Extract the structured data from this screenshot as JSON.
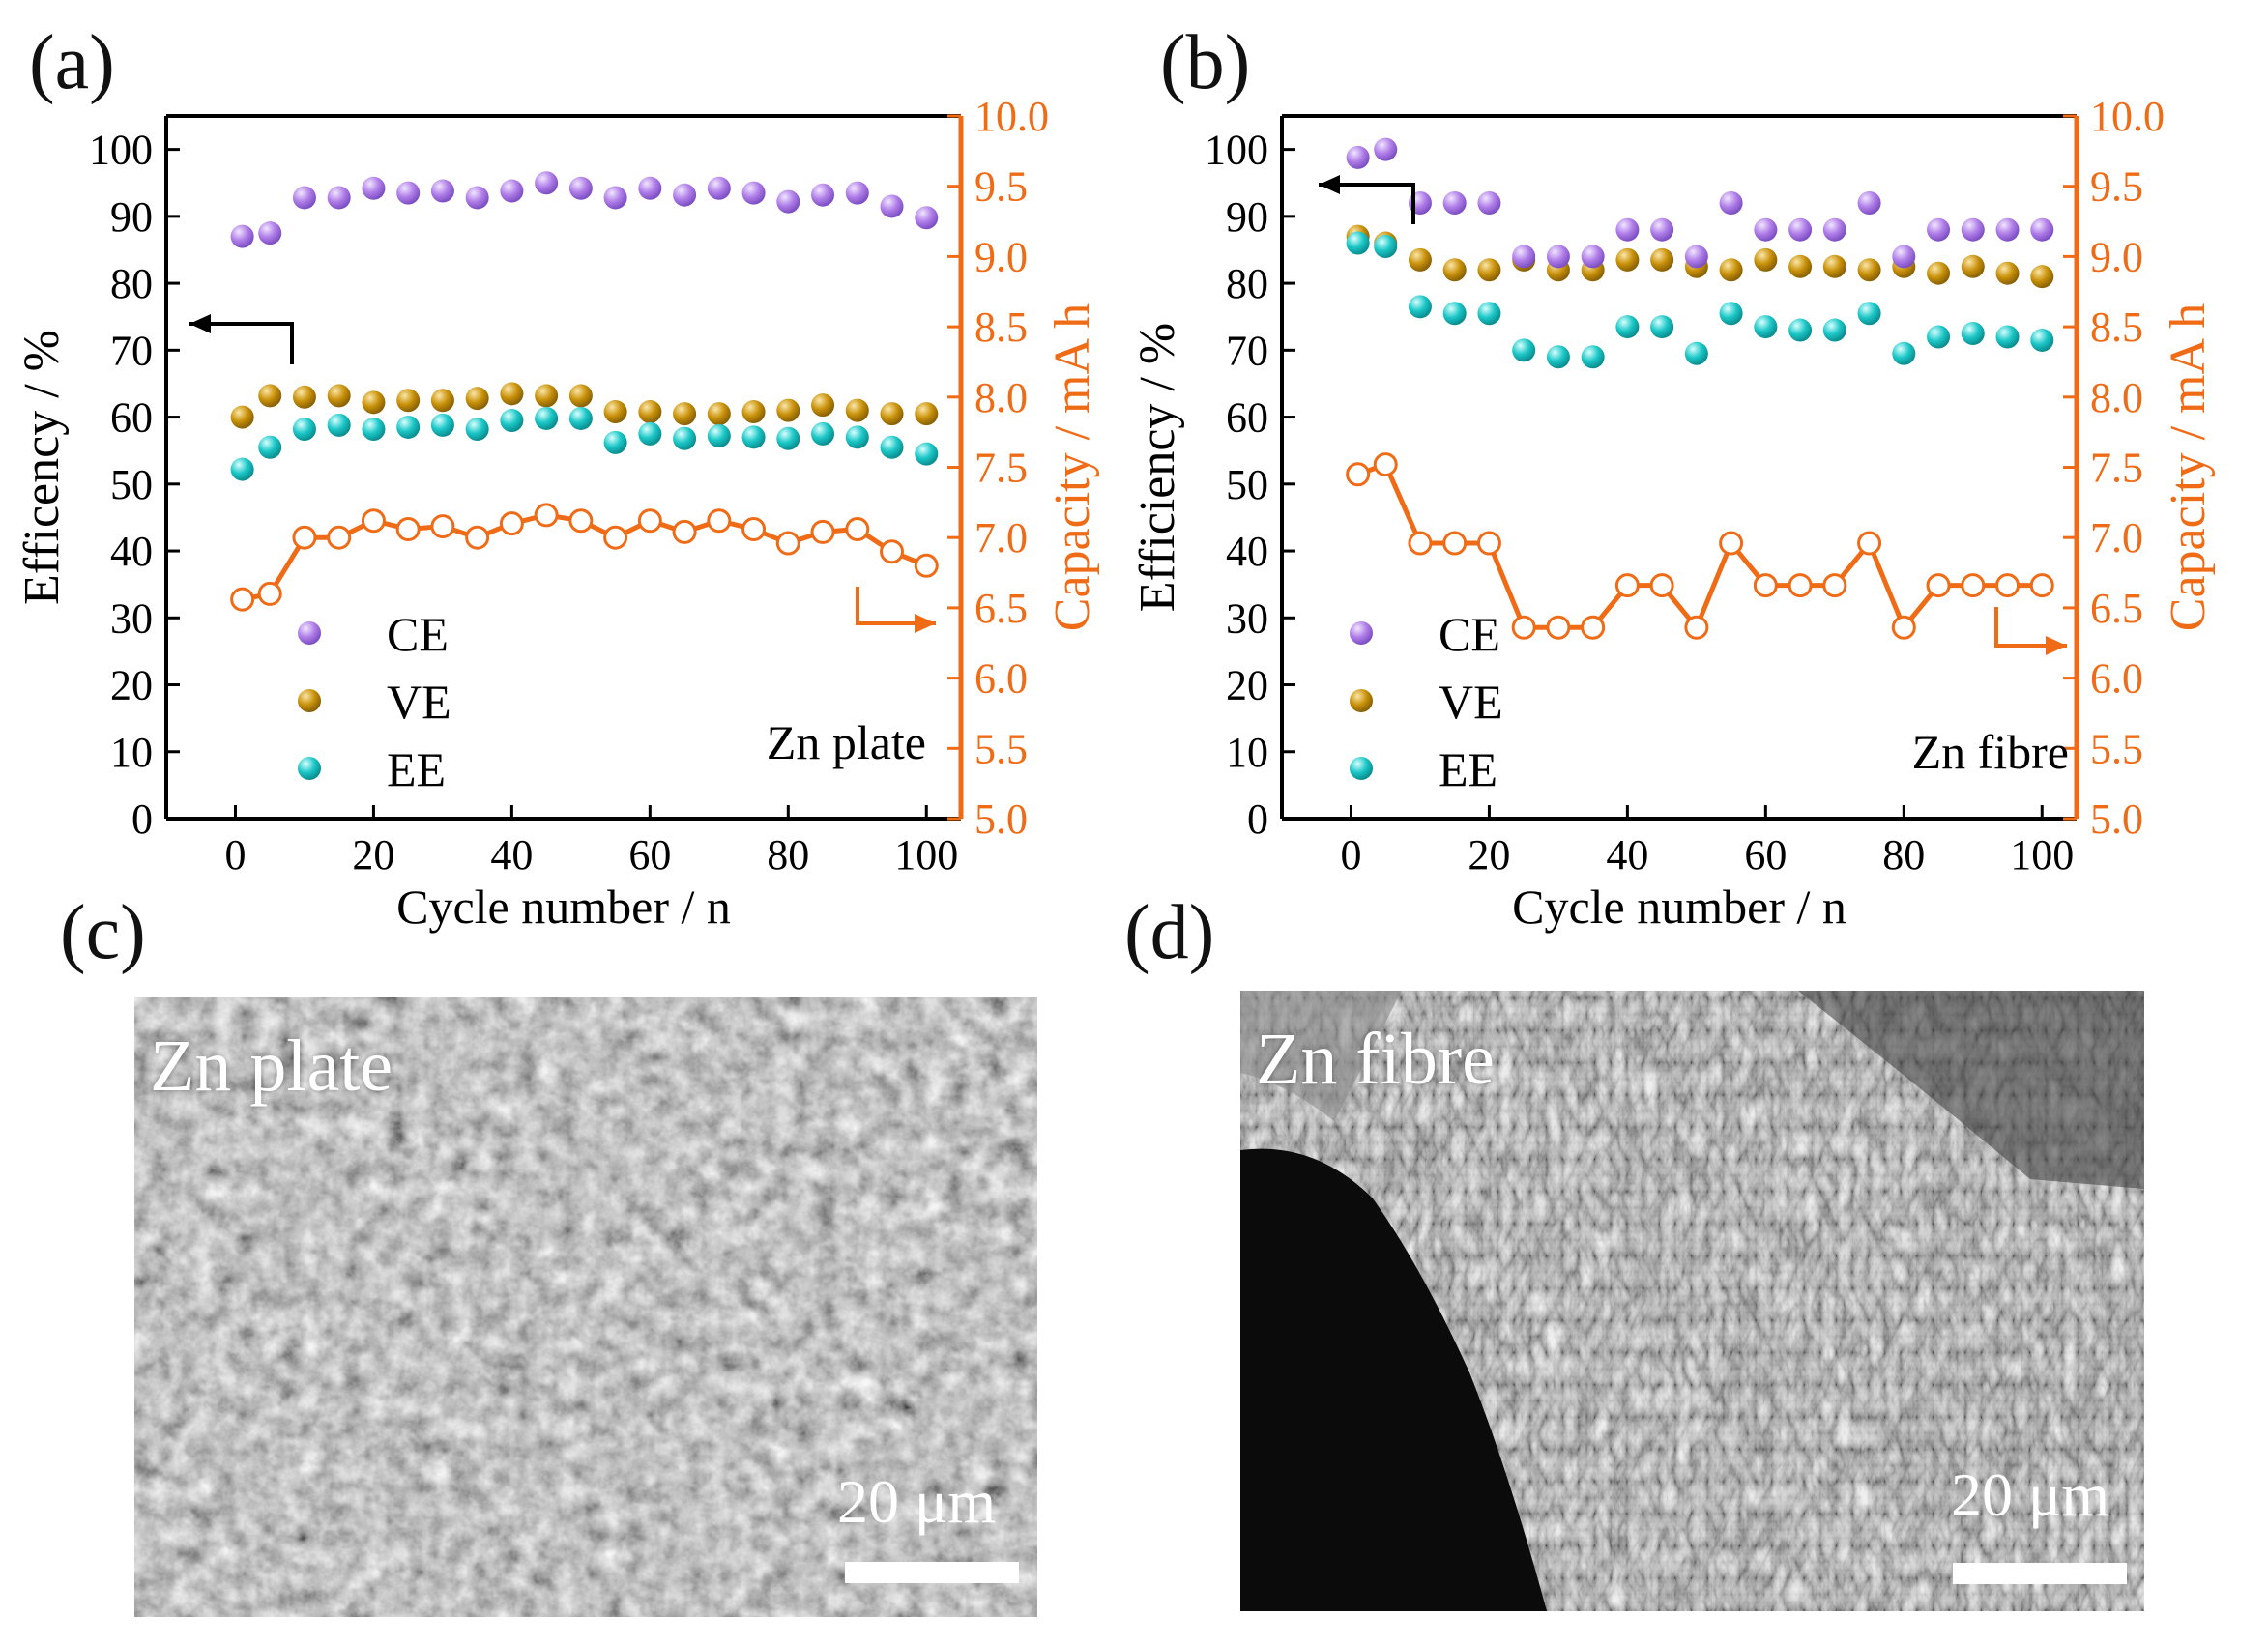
{
  "panel_labels": [
    "(a)",
    "(b)",
    "(c)",
    "(d)"
  ],
  "colors": {
    "ce": "#b07ee8",
    "ve": "#c9920a",
    "ee": "#1cc7c7",
    "capacity": "#f06b16",
    "axis": "#000000"
  },
  "chart_data": [
    {
      "type": "scatter",
      "panel": "(a)",
      "xlabel": "Cycle number / n",
      "ylabel": "Efficency / %",
      "y2label": "Capacity / mA h",
      "xlim": [
        -10,
        105
      ],
      "ylim": [
        0,
        105
      ],
      "y2lim": [
        5.0,
        10.0
      ],
      "xticks": [
        "0",
        "20",
        "40",
        "60",
        "80",
        "100"
      ],
      "yticks": [
        "0",
        "10",
        "20",
        "30",
        "40",
        "50",
        "60",
        "70",
        "80",
        "90",
        "100"
      ],
      "y2ticks": [
        "5.0",
        "5.5",
        "6.0",
        "6.5",
        "7.0",
        "7.5",
        "8.0",
        "8.5",
        "9.0",
        "9.5",
        "10.0"
      ],
      "annotation": "Zn plate",
      "legend": [
        "CE",
        "VE",
        "EE"
      ],
      "x": [
        1,
        5,
        10,
        15,
        20,
        25,
        30,
        35,
        40,
        45,
        50,
        55,
        60,
        65,
        70,
        75,
        80,
        85,
        90,
        95,
        100
      ],
      "series": [
        {
          "name": "CE",
          "values": [
            87.0,
            87.5,
            92.8,
            92.8,
            94.2,
            93.5,
            93.8,
            92.8,
            93.8,
            95.0,
            94.2,
            92.8,
            94.2,
            93.2,
            94.2,
            93.5,
            92.2,
            93.2,
            93.5,
            91.5,
            89.8
          ]
        },
        {
          "name": "VE",
          "values": [
            60.0,
            63.2,
            63.0,
            63.2,
            62.2,
            62.5,
            62.5,
            62.8,
            63.5,
            63.2,
            63.2,
            60.8,
            60.8,
            60.5,
            60.5,
            60.8,
            61.0,
            61.8,
            61.0,
            60.5,
            60.5
          ]
        },
        {
          "name": "EE",
          "values": [
            52.2,
            55.5,
            58.2,
            58.8,
            58.2,
            58.5,
            58.8,
            58.2,
            59.5,
            59.8,
            59.8,
            56.2,
            57.5,
            56.8,
            57.2,
            57.0,
            56.8,
            57.5,
            57.0,
            55.5,
            54.5
          ]
        },
        {
          "name": "Capacity",
          "axis": "right",
          "values": [
            6.56,
            6.6,
            7.0,
            7.0,
            7.12,
            7.06,
            7.08,
            7.0,
            7.1,
            7.16,
            7.12,
            7.0,
            7.12,
            7.04,
            7.12,
            7.06,
            6.96,
            7.04,
            7.06,
            6.9,
            6.8
          ]
        }
      ]
    },
    {
      "type": "scatter",
      "panel": "(b)",
      "xlabel": "Cycle number / n",
      "ylabel": "Efficiency / %",
      "y2label": "Capacity / mA h",
      "xlim": [
        -10,
        105
      ],
      "ylim": [
        0,
        105
      ],
      "y2lim": [
        5.0,
        10.0
      ],
      "xticks": [
        "0",
        "20",
        "40",
        "60",
        "80",
        "100"
      ],
      "yticks": [
        "0",
        "10",
        "20",
        "30",
        "40",
        "50",
        "60",
        "70",
        "80",
        "90",
        "100"
      ],
      "y2ticks": [
        "5.0",
        "5.5",
        "6.0",
        "6.5",
        "7.0",
        "7.5",
        "8.0",
        "8.5",
        "9.0",
        "9.5",
        "10.0"
      ],
      "annotation": "Zn fibre",
      "legend": [
        "CE",
        "VE",
        "EE"
      ],
      "x": [
        1,
        5,
        10,
        15,
        20,
        25,
        30,
        35,
        40,
        45,
        50,
        55,
        60,
        65,
        70,
        75,
        80,
        85,
        90,
        95,
        100
      ],
      "series": [
        {
          "name": "CE",
          "values": [
            98.8,
            100.0,
            92.0,
            92.0,
            92.0,
            84.0,
            84.0,
            84.0,
            88.0,
            88.0,
            84.0,
            92.0,
            88.0,
            88.0,
            88.0,
            92.0,
            84.0,
            88.0,
            88.0,
            88.0,
            88.0
          ]
        },
        {
          "name": "VE",
          "values": [
            87.0,
            86.0,
            83.5,
            82.0,
            82.0,
            83.5,
            82.0,
            82.0,
            83.5,
            83.5,
            82.5,
            82.0,
            83.5,
            82.5,
            82.5,
            82.0,
            82.5,
            81.5,
            82.5,
            81.5,
            81.0
          ]
        },
        {
          "name": "EE",
          "values": [
            86.0,
            85.5,
            76.5,
            75.5,
            75.5,
            70.0,
            69.0,
            69.0,
            73.5,
            73.5,
            69.5,
            75.5,
            73.5,
            73.0,
            73.0,
            75.5,
            69.5,
            72.0,
            72.5,
            72.0,
            71.5
          ]
        },
        {
          "name": "Capacity",
          "axis": "right",
          "values": [
            7.45,
            7.52,
            6.96,
            6.96,
            6.96,
            6.36,
            6.36,
            6.36,
            6.66,
            6.66,
            6.36,
            6.96,
            6.66,
            6.66,
            6.66,
            6.96,
            6.36,
            6.66,
            6.66,
            6.66,
            6.66
          ]
        }
      ]
    }
  ],
  "sem_images": [
    {
      "title": "Zn plate",
      "scale_label": "20 μm"
    },
    {
      "title": "Zn fibre",
      "scale_label": "20 μm"
    }
  ]
}
